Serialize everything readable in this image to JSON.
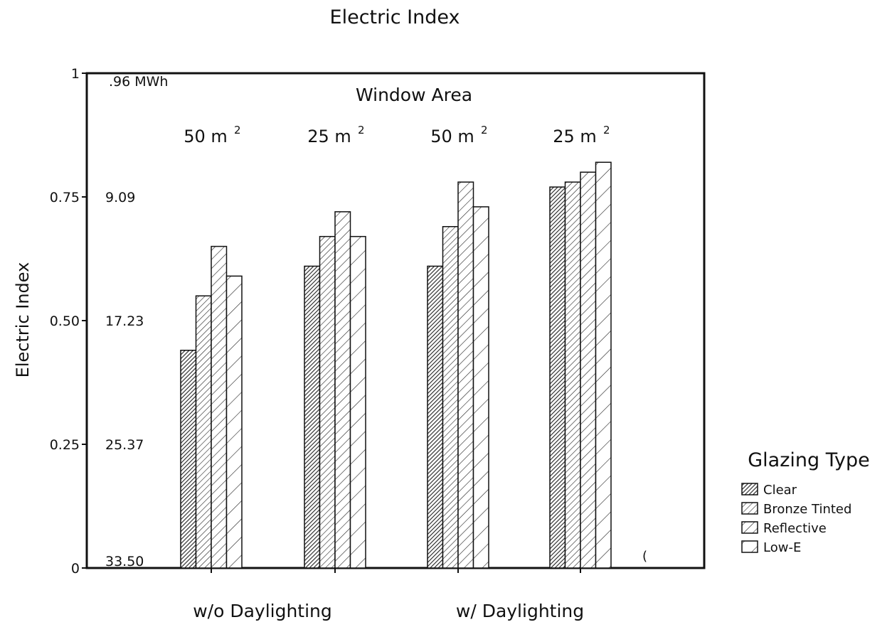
{
  "chart_data": {
    "type": "bar",
    "title": "Electric Index",
    "ylabel": "Electric Index",
    "ylim": [
      0,
      1
    ],
    "y_ticks": [
      "0",
      "0.25",
      "0.50",
      "0.75",
      "1"
    ],
    "y_tick_values": [
      0,
      0.25,
      0.5,
      0.75,
      1
    ],
    "secondary_y_labels": [
      "33.50",
      "25.37",
      "17.23",
      "9.09",
      ".96 MWh"
    ],
    "header": "Window Area",
    "categories": [
      "50 m",
      "25 m",
      "50 m",
      "25 m"
    ],
    "category_superscript": "2",
    "groups": [
      "w/o Daylighting",
      "w/  Daylighting"
    ],
    "legend_title": "Glazing Type",
    "legend_position": "right",
    "grid": false,
    "series": [
      {
        "name": "Clear",
        "values": [
          0.44,
          0.61,
          0.61,
          0.77
        ]
      },
      {
        "name": "Bronze Tinted",
        "values": [
          0.55,
          0.67,
          0.69,
          0.78
        ]
      },
      {
        "name": "Reflective",
        "values": [
          0.65,
          0.72,
          0.78,
          0.8
        ]
      },
      {
        "name": "Low-E",
        "values": [
          0.59,
          0.67,
          0.73,
          0.82
        ]
      }
    ],
    "annotation": "("
  }
}
